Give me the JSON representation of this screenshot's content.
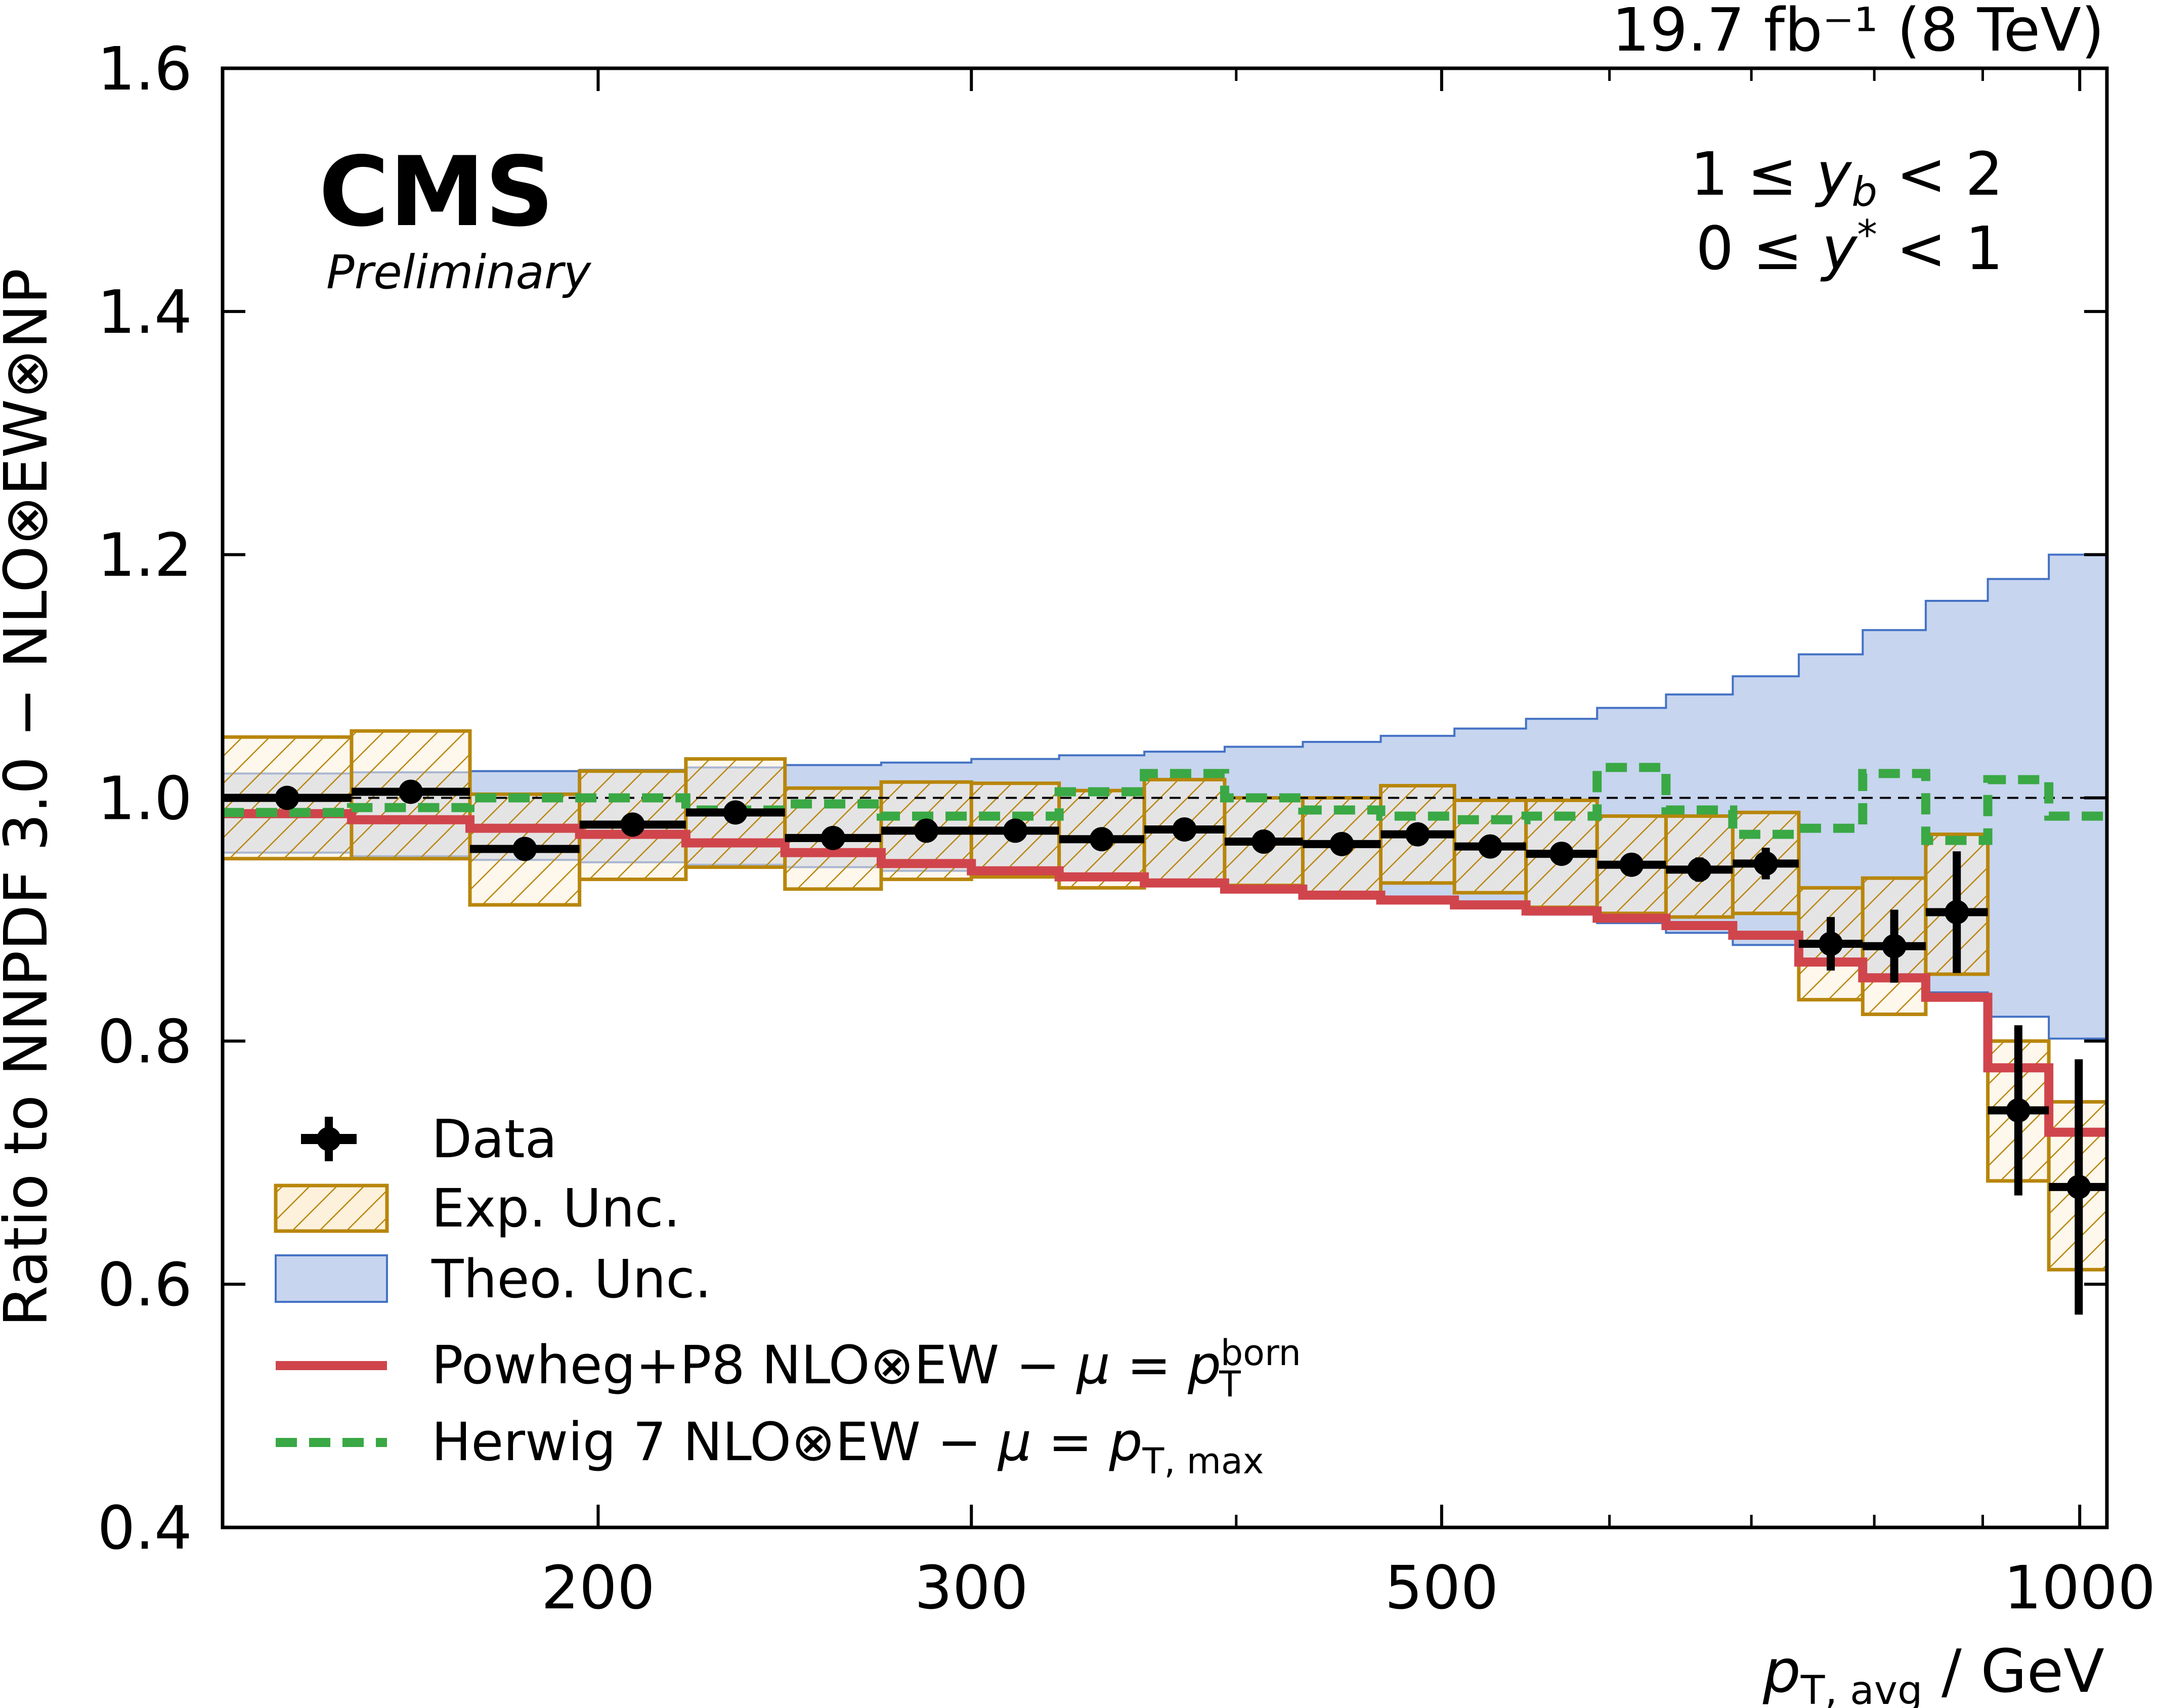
{
  "chart_data": {
    "type": "line",
    "lumi_label": "19.7 fb⁻¹ (8 TeV)",
    "experiment": "CMS",
    "status": "Preliminary",
    "region_lines": [
      "1 ≤ yb < 2",
      "0 ≤ y* < 1"
    ],
    "ylabel": "Ratio to NNPDF 3.0 − NLO⊗EW⊗NP",
    "xlabel": "pT,avg / GeV",
    "x_scale": "log",
    "xlim": [
      133,
      1030
    ],
    "ylim": [
      0.4,
      1.6
    ],
    "x_ticks": [
      {
        "value": 200,
        "label": "200"
      },
      {
        "value": 300,
        "label": "300"
      },
      {
        "value": 500,
        "label": "500"
      },
      {
        "value": 1000,
        "label": "1000"
      }
    ],
    "x_minor_ticks": [
      400,
      600,
      700,
      800,
      900
    ],
    "y_ticks": [
      {
        "value": 0.4,
        "label": "0.4"
      },
      {
        "value": 0.6,
        "label": "0.6"
      },
      {
        "value": 0.8,
        "label": "0.8"
      },
      {
        "value": 1.0,
        "label": "1.0"
      },
      {
        "value": 1.2,
        "label": "1.2"
      },
      {
        "value": 1.4,
        "label": "1.4"
      },
      {
        "value": 1.6,
        "label": "1.6"
      }
    ],
    "reference_line": 1.0,
    "bin_edges": [
      133,
      153,
      174,
      196,
      220,
      245,
      272,
      300,
      330,
      362,
      395,
      430,
      468,
      507,
      548,
      592,
      638,
      686,
      737,
      790,
      846,
      905,
      967,
      1032
    ],
    "series": [
      {
        "name": "Data",
        "kind": "points",
        "color": "#000000",
        "values": [
          1.0,
          1.005,
          0.958,
          0.978,
          0.988,
          0.967,
          0.973,
          0.973,
          0.966,
          0.974,
          0.964,
          0.962,
          0.97,
          0.96,
          0.954,
          0.945,
          0.941,
          0.946,
          0.88,
          0.878,
          0.906,
          0.743,
          0.68
        ],
        "errors": [
          0.004,
          0.004,
          0.005,
          0.005,
          0.005,
          0.005,
          0.005,
          0.005,
          0.005,
          0.005,
          0.005,
          0.006,
          0.006,
          0.007,
          0.007,
          0.008,
          0.01,
          0.013,
          0.022,
          0.03,
          0.05,
          0.07,
          0.105
        ]
      },
      {
        "name": "Exp. Unc.",
        "kind": "band",
        "color": "#b8860b",
        "fill": "#fdf1dc",
        "lower": [
          0.95,
          0.95,
          0.912,
          0.933,
          0.943,
          0.925,
          0.933,
          0.935,
          0.926,
          0.93,
          0.928,
          0.922,
          0.93,
          0.922,
          0.91,
          0.905,
          0.902,
          0.905,
          0.834,
          0.822,
          0.855,
          0.685,
          0.612
        ],
        "upper": [
          1.05,
          1.055,
          1.003,
          1.022,
          1.032,
          1.008,
          1.013,
          1.012,
          1.006,
          1.015,
          1.0,
          1.0,
          1.01,
          0.998,
          0.998,
          0.985,
          0.985,
          0.988,
          0.926,
          0.934,
          0.97,
          0.8,
          0.75
        ]
      },
      {
        "name": "Theo. Unc.",
        "kind": "band",
        "color": "#4472c4",
        "fill": "#c7d5ef",
        "lower": [
          0.955,
          0.952,
          0.949,
          0.947,
          0.945,
          0.943,
          0.94,
          0.937,
          0.933,
          0.929,
          0.925,
          0.921,
          0.916,
          0.91,
          0.904,
          0.897,
          0.889,
          0.879,
          0.867,
          0.855,
          0.84,
          0.82,
          0.802
        ],
        "upper": [
          1.02,
          1.021,
          1.022,
          1.023,
          1.025,
          1.027,
          1.029,
          1.032,
          1.035,
          1.038,
          1.042,
          1.046,
          1.051,
          1.057,
          1.065,
          1.074,
          1.085,
          1.1,
          1.118,
          1.138,
          1.162,
          1.18,
          1.2
        ]
      },
      {
        "name": "Powheg+P8 NLO⊗EW − μ = pT^born",
        "kind": "step",
        "color": "#d0454c",
        "values": [
          0.987,
          0.982,
          0.975,
          0.97,
          0.963,
          0.955,
          0.946,
          0.94,
          0.935,
          0.93,
          0.925,
          0.92,
          0.916,
          0.912,
          0.907,
          0.901,
          0.895,
          0.887,
          0.865,
          0.852,
          0.836,
          0.778,
          0.725
        ]
      },
      {
        "name": "Herwig 7 NLO⊗EW − μ = pT,max",
        "kind": "step-dashed",
        "color": "#3aa845",
        "values": [
          0.988,
          0.992,
          1.0,
          1.0,
          0.99,
          0.995,
          0.985,
          0.985,
          1.005,
          1.02,
          1.0,
          0.99,
          0.985,
          0.982,
          0.985,
          1.025,
          0.99,
          0.97,
          0.975,
          1.02,
          0.965,
          1.015,
          0.985
        ]
      }
    ],
    "legend": {
      "position": "lower-left",
      "entries": [
        {
          "label": "Data",
          "symbol": "errorbar"
        },
        {
          "label": "Exp. Unc.",
          "symbol": "hatched-box"
        },
        {
          "label": "Theo. Unc.",
          "symbol": "box"
        },
        {
          "label": "Powheg+P8 NLO⊗EW − μ = pT^born",
          "symbol": "solid-line"
        },
        {
          "label": "Herwig 7 NLO⊗EW − μ = pT,max",
          "symbol": "dashed-line"
        }
      ]
    },
    "grid": false
  }
}
